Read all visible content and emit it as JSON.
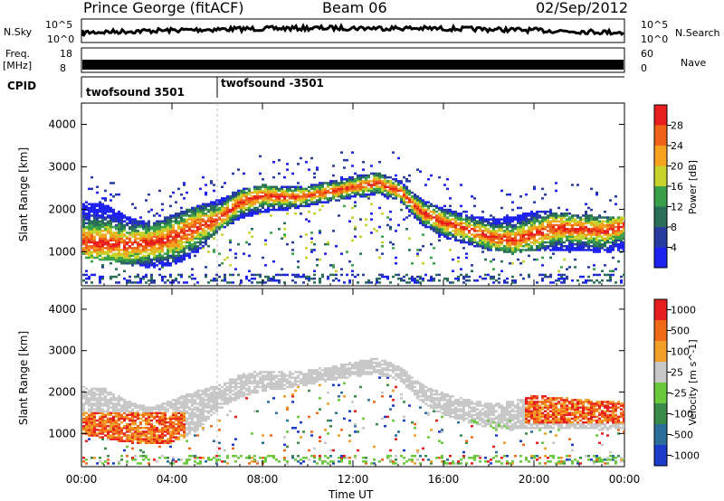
{
  "header": {
    "station": "Prince George (fitACF)",
    "beam": "Beam 06",
    "date": "02/Sep/2012"
  },
  "strip_panels": {
    "nsky_label": "N.Sky",
    "nsky_ticks": [
      "10^5",
      "10^0"
    ],
    "nsearch_label": "N.Search",
    "nsearch_ticks": [
      "10^5",
      "10^0"
    ],
    "freq_label": "Freq.",
    "freq_unit": "[MHz]",
    "freq_ticks": [
      "18",
      "8"
    ],
    "nave_label": "Nave",
    "nave_ticks": [
      "60",
      "0"
    ],
    "cpid_label": "CPID",
    "cpid_segments": [
      {
        "name": "twofsound 3501",
        "start_hour": 0
      },
      {
        "name": "twofsound -3501",
        "start_hour": 6.0
      }
    ]
  },
  "chart_data": [
    {
      "type": "heatmap",
      "title": "",
      "xlabel": "Time UT",
      "ylabel": "Slant Range [km]",
      "xlim_hours": [
        0,
        24
      ],
      "ylim_km": [
        200,
        4500
      ],
      "xticks": [
        "00:00",
        "04:00",
        "08:00",
        "12:00",
        "16:00",
        "20:00",
        "00:00"
      ],
      "yticks": [
        "1000",
        "2000",
        "3000",
        "4000"
      ],
      "colorbar": {
        "label": "Power [dB]",
        "ticks": [
          "4",
          "8",
          "12",
          "16",
          "20",
          "24",
          "28"
        ],
        "range": [
          0,
          30
        ],
        "colors": [
          "#1e22f0",
          "#283ca0",
          "#2a6e58",
          "#3aa04a",
          "#c8d22c",
          "#f5a21e",
          "#f0621a",
          "#e81e1e"
        ]
      },
      "echo_band_upper_km": [
        [
          0,
          2150
        ],
        [
          1,
          2100
        ],
        [
          2,
          1800
        ],
        [
          3,
          1650
        ],
        [
          4,
          1850
        ],
        [
          5,
          2050
        ],
        [
          6,
          2200
        ],
        [
          7,
          2450
        ],
        [
          8,
          2550
        ],
        [
          9,
          2500
        ],
        [
          10,
          2550
        ],
        [
          11,
          2650
        ],
        [
          12,
          2750
        ],
        [
          13,
          2850
        ],
        [
          14,
          2650
        ],
        [
          15,
          2200
        ],
        [
          16,
          2000
        ],
        [
          17,
          1850
        ],
        [
          18,
          1750
        ],
        [
          19,
          1800
        ],
        [
          20,
          1950
        ],
        [
          21,
          1900
        ],
        [
          22,
          1850
        ],
        [
          23,
          1800
        ],
        [
          24,
          1800
        ]
      ],
      "echo_band_peak_km": [
        [
          0,
          1200
        ],
        [
          1,
          1180
        ],
        [
          2,
          1130
        ],
        [
          3,
          1180
        ],
        [
          4,
          1300
        ],
        [
          5,
          1550
        ],
        [
          6,
          1750
        ],
        [
          7,
          2150
        ],
        [
          8,
          2300
        ],
        [
          9,
          2250
        ],
        [
          10,
          2300
        ],
        [
          11,
          2400
        ],
        [
          12,
          2500
        ],
        [
          13,
          2600
        ],
        [
          14,
          2400
        ],
        [
          15,
          1900
        ],
        [
          16,
          1650
        ],
        [
          17,
          1500
        ],
        [
          18,
          1330
        ],
        [
          19,
          1250
        ],
        [
          20,
          1400
        ],
        [
          21,
          1550
        ],
        [
          22,
          1500
        ],
        [
          23,
          1450
        ],
        [
          24,
          1600
        ]
      ],
      "echo_band_lower_km": [
        [
          0,
          850
        ],
        [
          1,
          750
        ],
        [
          2,
          650
        ],
        [
          3,
          600
        ],
        [
          4,
          650
        ],
        [
          5,
          900
        ],
        [
          6,
          1450
        ],
        [
          7,
          1750
        ],
        [
          8,
          1900
        ],
        [
          9,
          1950
        ],
        [
          10,
          2050
        ],
        [
          11,
          2150
        ],
        [
          12,
          2250
        ],
        [
          13,
          2300
        ],
        [
          14,
          2150
        ],
        [
          15,
          1600
        ],
        [
          16,
          1300
        ],
        [
          17,
          1150
        ],
        [
          18,
          1000
        ],
        [
          19,
          950
        ],
        [
          20,
          1000
        ],
        [
          21,
          1000
        ],
        [
          22,
          1000
        ],
        [
          23,
          950
        ],
        [
          24,
          1000
        ]
      ]
    },
    {
      "type": "heatmap",
      "title": "",
      "xlabel": "Time UT",
      "ylabel": "Slant Range [km]",
      "xlim_hours": [
        0,
        24
      ],
      "ylim_km": [
        200,
        4500
      ],
      "xticks": [
        "00:00",
        "04:00",
        "08:00",
        "12:00",
        "16:00",
        "20:00",
        "00:00"
      ],
      "yticks": [
        "1000",
        "2000",
        "3000",
        "4000"
      ],
      "colorbar": {
        "label": "Velocity [m s^-1]",
        "ticks": [
          "1000",
          "500",
          "100",
          "25",
          "-25",
          "-100",
          "-500",
          "-1000"
        ],
        "range": [
          -1000,
          1000
        ],
        "colors": [
          "#1c3cc8",
          "#2a6e9a",
          "#3a8a4a",
          "#6ac83c",
          "#c8c8c8",
          "#f0a028",
          "#f06a1a",
          "#e81e1e"
        ]
      },
      "ground_scatter_color": "#c8c8c8"
    }
  ]
}
